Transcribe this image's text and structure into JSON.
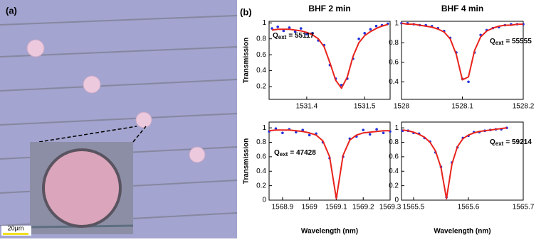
{
  "panel_a": {
    "label": "(a)",
    "scale_bar": "20μm"
  },
  "panel_b": {
    "label": "(b)"
  },
  "chart_data": [
    {
      "type": "line",
      "title": "BHF 2 min",
      "ylabel": "Transmission",
      "annotation": {
        "symbol": "Q",
        "subscript": "ext",
        "text": "= 55117"
      },
      "x": [
        1531.34,
        1531.35,
        1531.36,
        1531.37,
        1531.38,
        1531.39,
        1531.4,
        1531.41,
        1531.42,
        1531.43,
        1531.44,
        1531.45,
        1531.46,
        1531.47,
        1531.48,
        1531.49,
        1531.5,
        1531.51,
        1531.52,
        1531.53,
        1531.54
      ],
      "series": [
        {
          "mode": "markers",
          "color": "#2233dd",
          "values": [
            0.93,
            0.95,
            0.9,
            0.94,
            0.89,
            0.93,
            0.86,
            0.87,
            0.78,
            0.72,
            0.47,
            0.3,
            0.22,
            0.3,
            0.55,
            0.8,
            0.87,
            0.92,
            0.96,
            0.97,
            0.99
          ]
        },
        {
          "mode": "lines",
          "color": "#e8231c",
          "values": [
            0.91,
            0.92,
            0.92,
            0.92,
            0.91,
            0.9,
            0.88,
            0.85,
            0.8,
            0.7,
            0.5,
            0.28,
            0.18,
            0.32,
            0.58,
            0.75,
            0.84,
            0.89,
            0.93,
            0.96,
            0.98
          ]
        }
      ],
      "xlim": [
        1531.335,
        1531.544
      ],
      "xticks": [
        1531.4,
        1531.5
      ],
      "ylim": [
        0.04,
        1.02
      ],
      "yticks": [
        0.2,
        0.4,
        0.6,
        0.8,
        1
      ]
    },
    {
      "type": "line",
      "title": "BHF 4 min",
      "annotation": {
        "symbol": "Q",
        "subscript": "ext",
        "text": "= 55555"
      },
      "x": [
        1528.0,
        1528.01,
        1528.02,
        1528.03,
        1528.04,
        1528.05,
        1528.06,
        1528.07,
        1528.08,
        1528.09,
        1528.1,
        1528.11,
        1528.12,
        1528.13,
        1528.14,
        1528.15,
        1528.16,
        1528.17,
        1528.18,
        1528.19,
        1528.2
      ],
      "series": [
        {
          "mode": "markers",
          "color": "#2233dd",
          "values": [
            1.0,
            1.0,
            0.99,
            0.98,
            0.98,
            0.97,
            0.95,
            0.92,
            0.85,
            0.7,
            0.43,
            0.4,
            0.7,
            0.88,
            0.93,
            0.95,
            0.96,
            0.98,
            0.99,
            0.99,
            0.99
          ]
        },
        {
          "mode": "lines",
          "color": "#e8231c",
          "values": [
            1.0,
            0.99,
            0.99,
            0.98,
            0.97,
            0.96,
            0.94,
            0.91,
            0.84,
            0.68,
            0.42,
            0.45,
            0.72,
            0.86,
            0.92,
            0.95,
            0.97,
            0.98,
            0.98,
            0.99,
            0.99
          ]
        }
      ],
      "xlim": [
        1528,
        1528.2
      ],
      "xticks": [
        1528,
        1528.1,
        1528.2
      ],
      "ylim": [
        0.22,
        1.02
      ],
      "yticks": [
        0.4,
        0.6,
        0.8,
        1
      ]
    },
    {
      "type": "line",
      "ylabel": "Transmission",
      "xlabel": "Wavelength (nm)",
      "annotation": {
        "symbol": "Q",
        "subscript": "ext",
        "text": "= 47428"
      },
      "x": [
        1568.85,
        1568.875,
        1568.9,
        1568.925,
        1568.95,
        1568.975,
        1569.0,
        1569.025,
        1569.05,
        1569.075,
        1569.1,
        1569.125,
        1569.15,
        1569.175,
        1569.2,
        1569.225,
        1569.25,
        1569.275,
        1569.3
      ],
      "series": [
        {
          "mode": "markers",
          "color": "#2233dd",
          "values": [
            0.95,
            0.99,
            0.93,
            0.98,
            0.94,
            0.97,
            0.9,
            0.92,
            0.8,
            0.58,
            0.05,
            0.6,
            0.85,
            0.88,
            0.97,
            0.91,
            0.98,
            0.93,
            0.95
          ]
        },
        {
          "mode": "lines",
          "color": "#e8231c",
          "values": [
            0.96,
            0.97,
            0.97,
            0.97,
            0.96,
            0.95,
            0.93,
            0.9,
            0.82,
            0.6,
            0.02,
            0.62,
            0.83,
            0.9,
            0.93,
            0.94,
            0.95,
            0.96,
            0.96
          ]
        }
      ],
      "xlim": [
        1568.85,
        1569.3
      ],
      "xticks": [
        1568.9,
        1569,
        1569.1,
        1569.2,
        1569.3
      ],
      "ylim": [
        0,
        1.08
      ],
      "yticks": [
        0,
        0.2,
        0.4,
        0.6,
        0.8,
        1
      ]
    },
    {
      "type": "line",
      "xlabel": "Wavelength (nm)",
      "annotation": {
        "symbol": "Q",
        "subscript": "ext",
        "text": "= 59214"
      },
      "x": [
        1565.48,
        1565.49,
        1565.5,
        1565.51,
        1565.52,
        1565.53,
        1565.54,
        1565.55,
        1565.56,
        1565.57,
        1565.58,
        1565.59,
        1565.6,
        1565.61,
        1565.62,
        1565.63,
        1565.64,
        1565.65,
        1565.66,
        1565.67
      ],
      "series": [
        {
          "mode": "markers",
          "color": "#2233dd",
          "values": [
            0.96,
            0.96,
            0.93,
            0.92,
            0.86,
            0.81,
            0.66,
            0.46,
            0.04,
            0.52,
            0.73,
            0.86,
            0.89,
            0.94,
            0.94,
            0.96,
            0.97,
            0.98,
            0.98,
            1.0
          ]
        },
        {
          "mode": "lines",
          "color": "#e8231c",
          "values": [
            0.97,
            0.96,
            0.94,
            0.91,
            0.87,
            0.8,
            0.68,
            0.45,
            0.02,
            0.5,
            0.74,
            0.85,
            0.9,
            0.93,
            0.95,
            0.96,
            0.97,
            0.98,
            0.99,
            1.0
          ]
        }
      ],
      "xlim": [
        1565.478,
        1565.7
      ],
      "xticks": [
        1565.5,
        1565.6,
        1565.7
      ],
      "ylim": [
        0,
        1.08
      ],
      "yticks": [
        0,
        0.2,
        0.4,
        0.6,
        0.8,
        1
      ]
    }
  ]
}
